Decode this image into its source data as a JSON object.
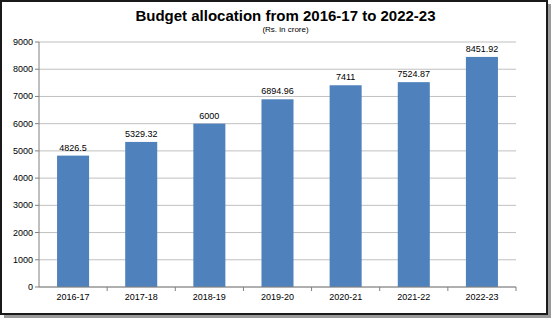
{
  "chart_data": {
    "type": "bar",
    "title": "Budget allocation from 2016-17 to 2022-23",
    "subtitle": "(Rs. in crore)",
    "categories": [
      "2016-17",
      "2017-18",
      "2018-19",
      "2019-20",
      "2020-21",
      "2021-22",
      "2022-23"
    ],
    "values": [
      4826.5,
      5329.32,
      6000,
      6894.96,
      7411,
      7524.87,
      8451.92
    ],
    "color": "#4f81bd",
    "ylim": [
      0,
      9000
    ],
    "yticks": [
      0,
      1000,
      2000,
      3000,
      4000,
      5000,
      6000,
      7000,
      8000,
      9000
    ],
    "grid": true,
    "data_labels": true
  }
}
